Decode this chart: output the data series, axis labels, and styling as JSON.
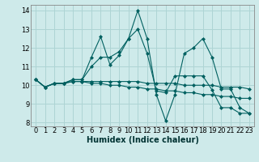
{
  "title": "",
  "xlabel": "Humidex (Indice chaleur)",
  "ylabel": "",
  "bg_color": "#ceeaea",
  "grid_color": "#aed4d4",
  "line_color": "#006060",
  "xlim": [
    -0.5,
    23.5
  ],
  "ylim": [
    7.8,
    14.3
  ],
  "xticks": [
    0,
    1,
    2,
    3,
    4,
    5,
    6,
    7,
    8,
    9,
    10,
    11,
    12,
    13,
    14,
    15,
    16,
    17,
    18,
    19,
    20,
    21,
    22,
    23
  ],
  "yticks": [
    8,
    9,
    10,
    11,
    12,
    13,
    14
  ],
  "lines": [
    [
      10.3,
      9.9,
      10.1,
      10.1,
      10.3,
      10.3,
      11.5,
      12.6,
      11.1,
      11.6,
      12.5,
      14.0,
      12.5,
      9.5,
      8.1,
      9.5,
      11.7,
      12.0,
      12.5,
      11.5,
      9.8,
      9.8,
      8.8,
      8.5
    ],
    [
      10.3,
      9.9,
      10.1,
      10.1,
      10.2,
      10.2,
      10.1,
      10.1,
      10.0,
      10.0,
      9.9,
      9.9,
      9.8,
      9.8,
      9.7,
      9.7,
      9.6,
      9.6,
      9.5,
      9.5,
      9.4,
      9.4,
      9.3,
      9.3
    ],
    [
      10.3,
      9.9,
      10.1,
      10.1,
      10.2,
      10.2,
      10.2,
      10.2,
      10.2,
      10.2,
      10.2,
      10.2,
      10.1,
      10.1,
      10.1,
      10.1,
      10.0,
      10.0,
      10.0,
      10.0,
      9.9,
      9.9,
      9.9,
      9.8
    ],
    [
      10.3,
      9.9,
      10.1,
      10.1,
      10.3,
      10.3,
      11.0,
      11.5,
      11.5,
      11.8,
      12.5,
      13.0,
      11.7,
      9.7,
      9.6,
      10.5,
      10.5,
      10.5,
      10.5,
      9.75,
      8.8,
      8.8,
      8.5,
      8.5
    ]
  ],
  "tick_fontsize": 6,
  "xlabel_fontsize": 7
}
